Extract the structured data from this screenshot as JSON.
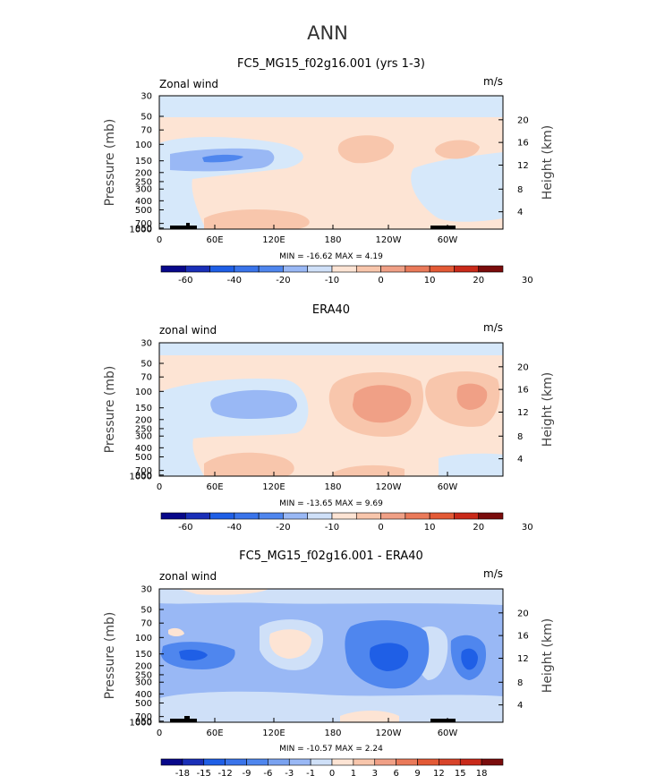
{
  "page_title": "ANN",
  "colors": {
    "blue_dark": "#08088a",
    "blue": "#1f5fe6",
    "blue_mid": "#4f86ee",
    "blue_light": "#99b8f5",
    "blue_pale": "#cfe0f8",
    "neutral_low": "#d6e8fa",
    "peach_pale": "#fde4d4",
    "peach": "#f8c6ac",
    "salmon": "#f0a086",
    "orange_red": "#e35a36",
    "red": "#c92a1a",
    "dark_red": "#7a0c0c",
    "terrain": "#000000"
  },
  "chart_data": [
    {
      "type": "heatmap",
      "title": "FC5_MG15_f02g16.001 (yrs 1-3)",
      "variable_label": "Zonal wind",
      "units_label": "m/s",
      "ylabel": "Pressure (mb)",
      "y2label": "Height (km)",
      "x_ticks": [
        "0",
        "60E",
        "120E",
        "180",
        "120W",
        "60W"
      ],
      "y_ticks": [
        "30",
        "50",
        "70",
        "100",
        "150",
        "200",
        "250",
        "300",
        "400",
        "500",
        "700",
        "850",
        "1000"
      ],
      "y2_ticks": [
        "20",
        "16",
        "12",
        "8",
        "4"
      ],
      "stats": "MIN = -16.62   MAX =   4.19",
      "stats_min": -16.62,
      "stats_max": 4.19,
      "colorbar_labels": [
        "-60",
        "-40",
        "-20",
        "-10",
        "0",
        "10",
        "20",
        "30"
      ],
      "colorbar_levels": 14
    },
    {
      "type": "heatmap",
      "title": "ERA40",
      "variable_label": "zonal wind",
      "units_label": "m/s",
      "ylabel": "Pressure (mb)",
      "y2label": "Height (km)",
      "x_ticks": [
        "0",
        "60E",
        "120E",
        "180",
        "120W",
        "60W"
      ],
      "y_ticks": [
        "30",
        "50",
        "70",
        "100",
        "150",
        "200",
        "250",
        "300",
        "400",
        "500",
        "700",
        "850",
        "1000"
      ],
      "y2_ticks": [
        "20",
        "16",
        "12",
        "8",
        "4"
      ],
      "stats": "MIN = -13.65   MAX =   9.69",
      "stats_min": -13.65,
      "stats_max": 9.69,
      "colorbar_labels": [
        "-60",
        "-40",
        "-20",
        "-10",
        "0",
        "10",
        "20",
        "30"
      ],
      "colorbar_levels": 14
    },
    {
      "type": "heatmap",
      "title": "FC5_MG15_f02g16.001 - ERA40",
      "variable_label": "zonal wind",
      "units_label": "m/s",
      "ylabel": "Pressure (mb)",
      "y2label": "Height (km)",
      "x_ticks": [
        "0",
        "60E",
        "120E",
        "180",
        "120W",
        "60W"
      ],
      "y_ticks": [
        "30",
        "50",
        "70",
        "100",
        "150",
        "200",
        "250",
        "300",
        "400",
        "500",
        "700",
        "850",
        "1000"
      ],
      "y2_ticks": [
        "20",
        "16",
        "12",
        "8",
        "4"
      ],
      "stats": "MIN = -10.57   MAX =   2.24",
      "stats_min": -10.57,
      "stats_max": 2.24,
      "colorbar_labels": [
        "-18",
        "-15",
        "-12",
        "-9",
        "-6",
        "-3",
        "-1",
        "0",
        "1",
        "3",
        "6",
        "9",
        "12",
        "15",
        "18"
      ],
      "colorbar_levels": 16
    }
  ]
}
